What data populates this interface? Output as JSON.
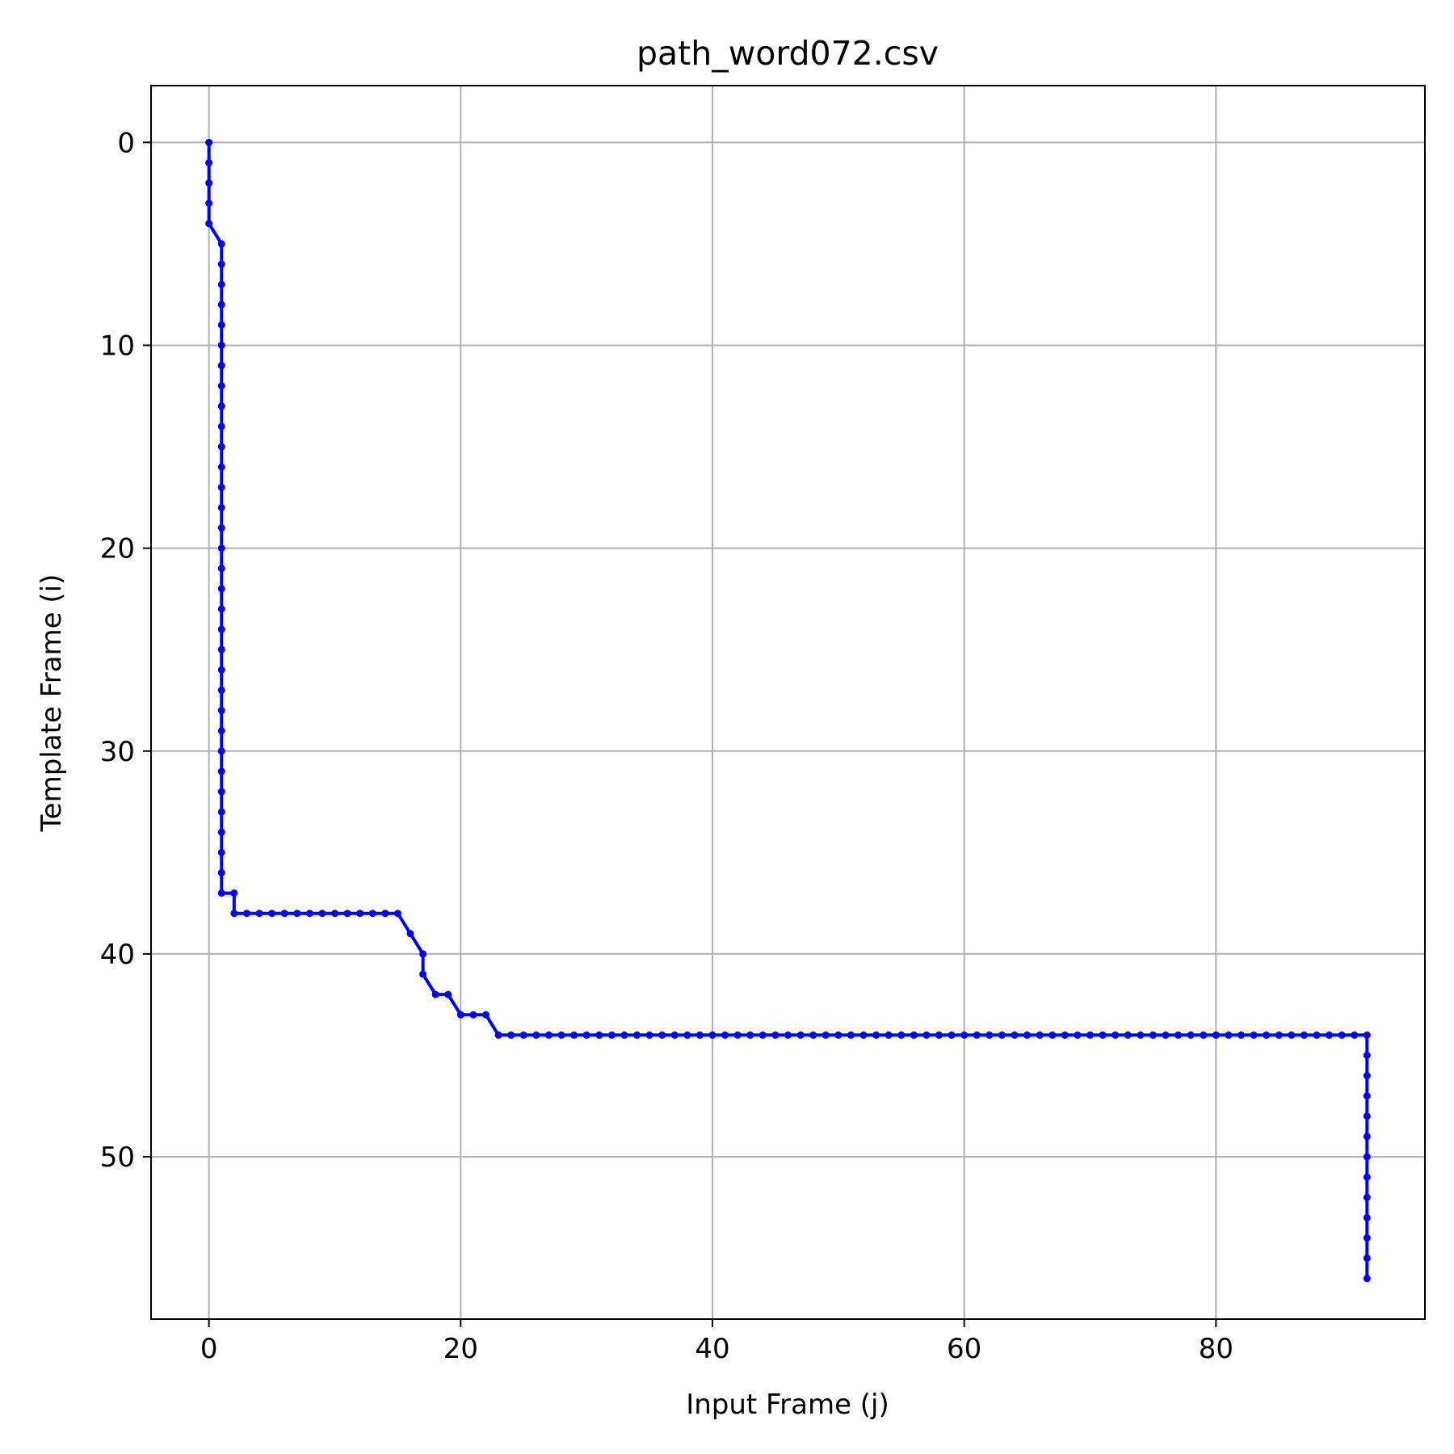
{
  "chart_data": {
    "type": "line",
    "title": "path_word072.csv",
    "xlabel": "Input Frame (j)",
    "ylabel": "Template Frame (i)",
    "xlim": [
      -4.6,
      96.6
    ],
    "ylim": [
      58.0,
      -2.8
    ],
    "y_inverted": true,
    "grid": true,
    "x_ticks": [
      0,
      20,
      40,
      60,
      80
    ],
    "y_ticks": [
      0,
      10,
      20,
      30,
      40,
      50
    ],
    "x_tick_labels": [
      "0",
      "20",
      "40",
      "60",
      "80"
    ],
    "y_tick_labels": [
      "0",
      "10",
      "20",
      "30",
      "40",
      "50"
    ],
    "series": [
      {
        "color": "#0000ff",
        "marker": "circle",
        "points": [
          [
            0,
            0
          ],
          [
            0,
            1
          ],
          [
            0,
            2
          ],
          [
            0,
            3
          ],
          [
            0,
            4
          ],
          [
            1,
            5
          ],
          [
            1,
            6
          ],
          [
            1,
            7
          ],
          [
            1,
            8
          ],
          [
            1,
            9
          ],
          [
            1,
            10
          ],
          [
            1,
            11
          ],
          [
            1,
            12
          ],
          [
            1,
            13
          ],
          [
            1,
            14
          ],
          [
            1,
            15
          ],
          [
            1,
            16
          ],
          [
            1,
            17
          ],
          [
            1,
            18
          ],
          [
            1,
            19
          ],
          [
            1,
            20
          ],
          [
            1,
            21
          ],
          [
            1,
            22
          ],
          [
            1,
            23
          ],
          [
            1,
            24
          ],
          [
            1,
            25
          ],
          [
            1,
            26
          ],
          [
            1,
            27
          ],
          [
            1,
            28
          ],
          [
            1,
            29
          ],
          [
            1,
            30
          ],
          [
            1,
            31
          ],
          [
            1,
            32
          ],
          [
            1,
            33
          ],
          [
            1,
            34
          ],
          [
            1,
            35
          ],
          [
            1,
            36
          ],
          [
            1,
            37
          ],
          [
            2,
            37
          ],
          [
            2,
            38
          ],
          [
            3,
            38
          ],
          [
            4,
            38
          ],
          [
            5,
            38
          ],
          [
            6,
            38
          ],
          [
            7,
            38
          ],
          [
            8,
            38
          ],
          [
            9,
            38
          ],
          [
            10,
            38
          ],
          [
            11,
            38
          ],
          [
            12,
            38
          ],
          [
            13,
            38
          ],
          [
            14,
            38
          ],
          [
            15,
            38
          ],
          [
            16,
            39
          ],
          [
            17,
            40
          ],
          [
            17,
            41
          ],
          [
            18,
            42
          ],
          [
            19,
            42
          ],
          [
            20,
            43
          ],
          [
            21,
            43
          ],
          [
            22,
            43
          ],
          [
            23,
            44
          ],
          [
            24,
            44
          ],
          [
            25,
            44
          ],
          [
            26,
            44
          ],
          [
            27,
            44
          ],
          [
            28,
            44
          ],
          [
            29,
            44
          ],
          [
            30,
            44
          ],
          [
            31,
            44
          ],
          [
            32,
            44
          ],
          [
            33,
            44
          ],
          [
            34,
            44
          ],
          [
            35,
            44
          ],
          [
            36,
            44
          ],
          [
            37,
            44
          ],
          [
            38,
            44
          ],
          [
            39,
            44
          ],
          [
            40,
            44
          ],
          [
            41,
            44
          ],
          [
            42,
            44
          ],
          [
            43,
            44
          ],
          [
            44,
            44
          ],
          [
            45,
            44
          ],
          [
            46,
            44
          ],
          [
            47,
            44
          ],
          [
            48,
            44
          ],
          [
            49,
            44
          ],
          [
            50,
            44
          ],
          [
            51,
            44
          ],
          [
            52,
            44
          ],
          [
            53,
            44
          ],
          [
            54,
            44
          ],
          [
            55,
            44
          ],
          [
            56,
            44
          ],
          [
            57,
            44
          ],
          [
            58,
            44
          ],
          [
            59,
            44
          ],
          [
            60,
            44
          ],
          [
            61,
            44
          ],
          [
            62,
            44
          ],
          [
            63,
            44
          ],
          [
            64,
            44
          ],
          [
            65,
            44
          ],
          [
            66,
            44
          ],
          [
            67,
            44
          ],
          [
            68,
            44
          ],
          [
            69,
            44
          ],
          [
            70,
            44
          ],
          [
            71,
            44
          ],
          [
            72,
            44
          ],
          [
            73,
            44
          ],
          [
            74,
            44
          ],
          [
            75,
            44
          ],
          [
            76,
            44
          ],
          [
            77,
            44
          ],
          [
            78,
            44
          ],
          [
            79,
            44
          ],
          [
            80,
            44
          ],
          [
            81,
            44
          ],
          [
            82,
            44
          ],
          [
            83,
            44
          ],
          [
            84,
            44
          ],
          [
            85,
            44
          ],
          [
            86,
            44
          ],
          [
            87,
            44
          ],
          [
            88,
            44
          ],
          [
            89,
            44
          ],
          [
            90,
            44
          ],
          [
            91,
            44
          ],
          [
            92,
            44
          ],
          [
            92,
            45
          ],
          [
            92,
            46
          ],
          [
            92,
            47
          ],
          [
            92,
            48
          ],
          [
            92,
            49
          ],
          [
            92,
            50
          ],
          [
            92,
            51
          ],
          [
            92,
            52
          ],
          [
            92,
            53
          ],
          [
            92,
            54
          ],
          [
            92,
            55
          ],
          [
            92,
            56
          ]
        ]
      }
    ]
  }
}
